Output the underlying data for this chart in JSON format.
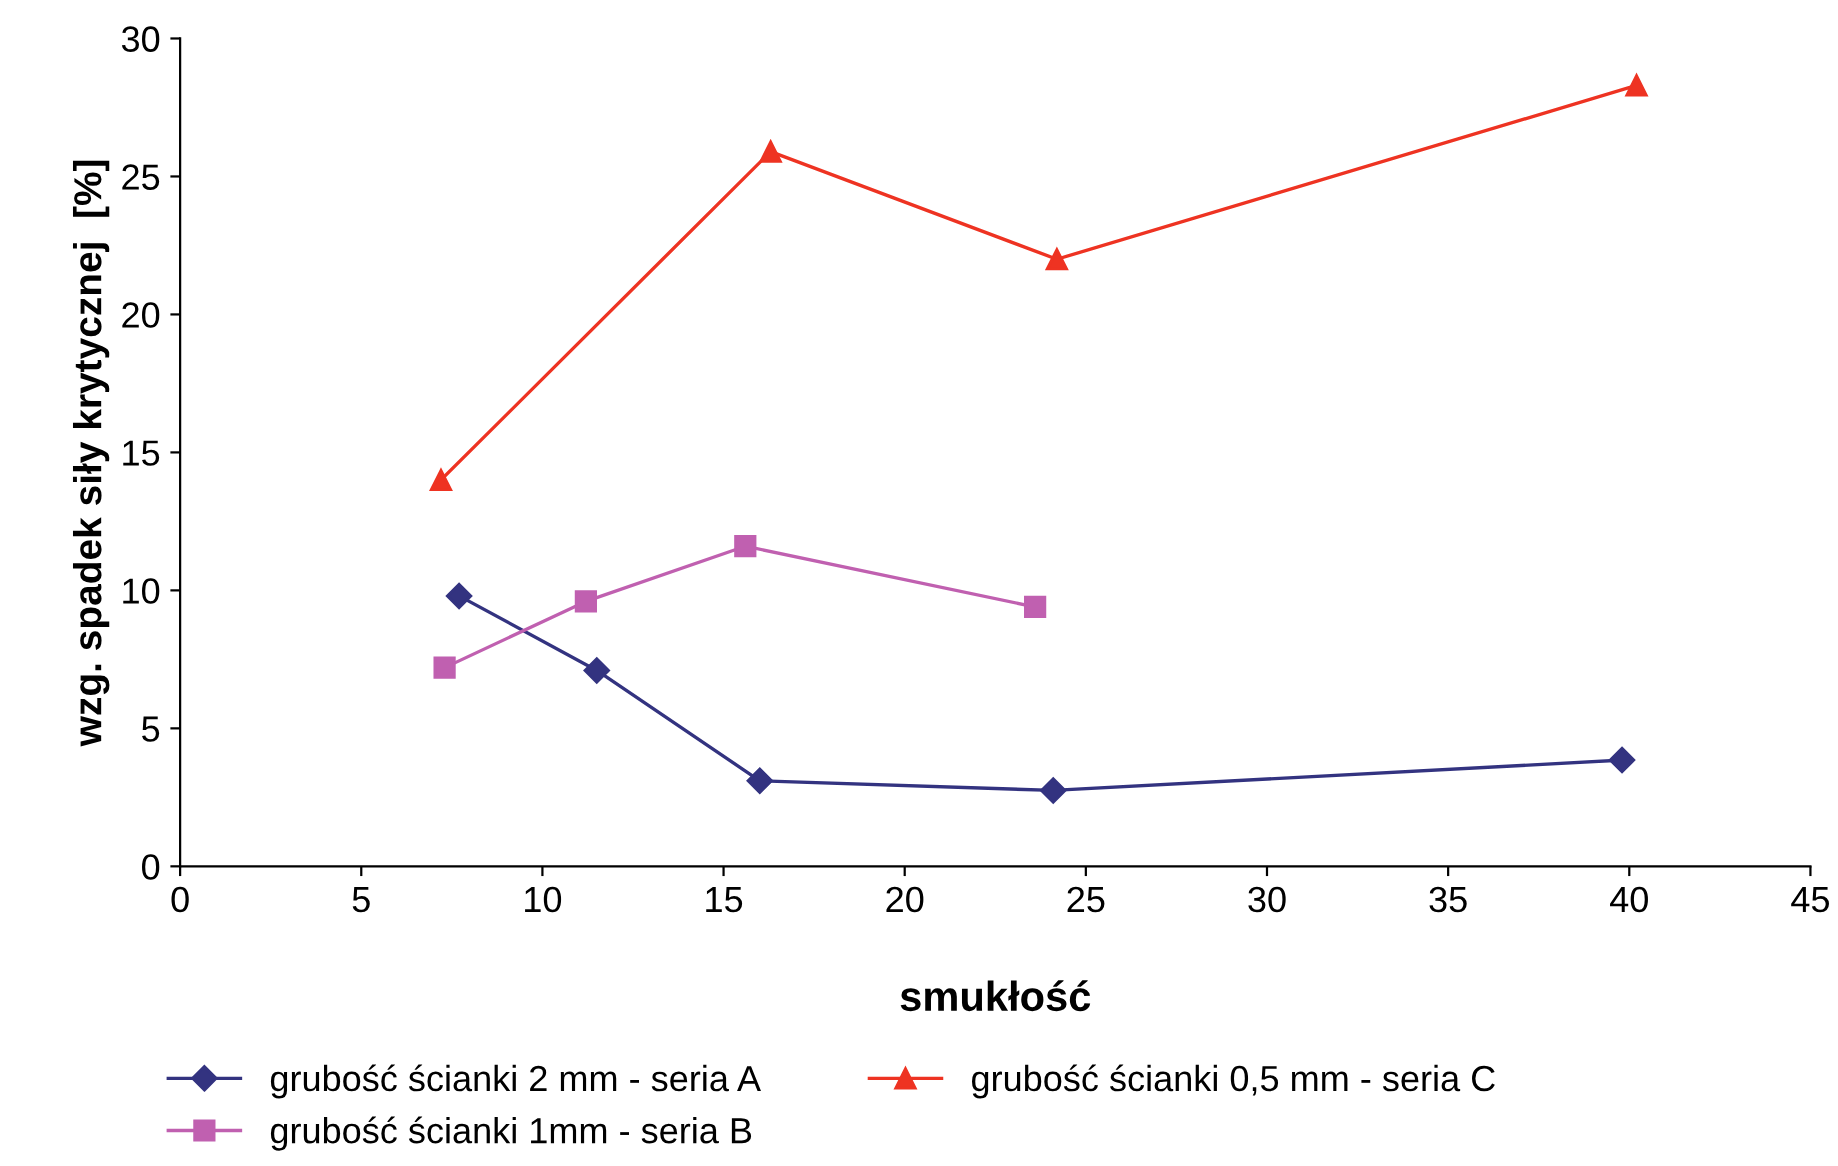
{
  "chart_data": {
    "type": "line",
    "xlabel": "smukłość",
    "ylabel": "wzg. spadek siły krytycznej  [%]",
    "xlim": [
      0,
      45
    ],
    "xticks": [
      0,
      5,
      10,
      15,
      20,
      25,
      30,
      35,
      40,
      45
    ],
    "ylim": [
      0,
      30
    ],
    "yticks": [
      0,
      5,
      10,
      15,
      20,
      25,
      30
    ],
    "grid": false,
    "legend": "bottom",
    "line_style": "solid",
    "series": [
      {
        "name": "grubość ścianki 2 mm - seria A",
        "color": "#333380",
        "marker": "diamond",
        "x": [
          7.7,
          11.5,
          16.0,
          24.1,
          39.8
        ],
        "values": [
          9.8,
          7.1,
          3.1,
          2.75,
          3.85
        ]
      },
      {
        "name": "grubość ścianki 1mm - seria B",
        "color": "#c060b0",
        "marker": "square",
        "x": [
          7.3,
          11.2,
          15.6,
          23.6
        ],
        "values": [
          7.2,
          9.6,
          11.6,
          9.4
        ]
      },
      {
        "name": "grubość ścianki 0,5 mm - seria C",
        "color": "#ee3322",
        "marker": "triangle",
        "x": [
          7.2,
          16.3,
          24.2,
          40.2
        ],
        "values": [
          14.0,
          25.9,
          22.0,
          28.3
        ]
      }
    ]
  }
}
